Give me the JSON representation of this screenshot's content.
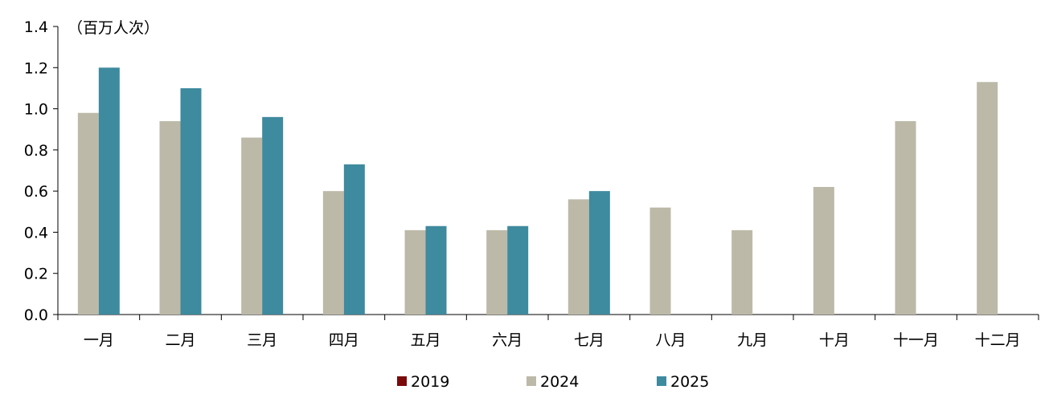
{
  "chart_data": {
    "type": "bar",
    "unit_label": "（百万人次）",
    "categories": [
      "一月",
      "二月",
      "三月",
      "四月",
      "五月",
      "六月",
      "七月",
      "八月",
      "九月",
      "十月",
      "十一月",
      "十二月"
    ],
    "series": [
      {
        "name": "2019",
        "color": "#7b0a0a",
        "values": [
          null,
          null,
          null,
          null,
          null,
          null,
          null,
          null,
          null,
          null,
          null,
          null
        ]
      },
      {
        "name": "2024",
        "color": "#bcb9a8",
        "values": [
          0.98,
          0.94,
          0.86,
          0.6,
          0.41,
          0.41,
          0.56,
          0.52,
          0.41,
          0.62,
          0.94,
          1.13
        ]
      },
      {
        "name": "2025",
        "color": "#3e8a9e",
        "values": [
          1.2,
          1.1,
          0.96,
          0.73,
          0.43,
          0.43,
          0.6,
          null,
          null,
          null,
          null,
          null
        ]
      }
    ],
    "ylim": [
      0,
      1.4
    ],
    "yticks": [
      "0.0",
      "0.2",
      "0.4",
      "0.6",
      "0.8",
      "1.0",
      "1.2",
      "1.4"
    ],
    "grid": false,
    "legend_position": "bottom"
  }
}
